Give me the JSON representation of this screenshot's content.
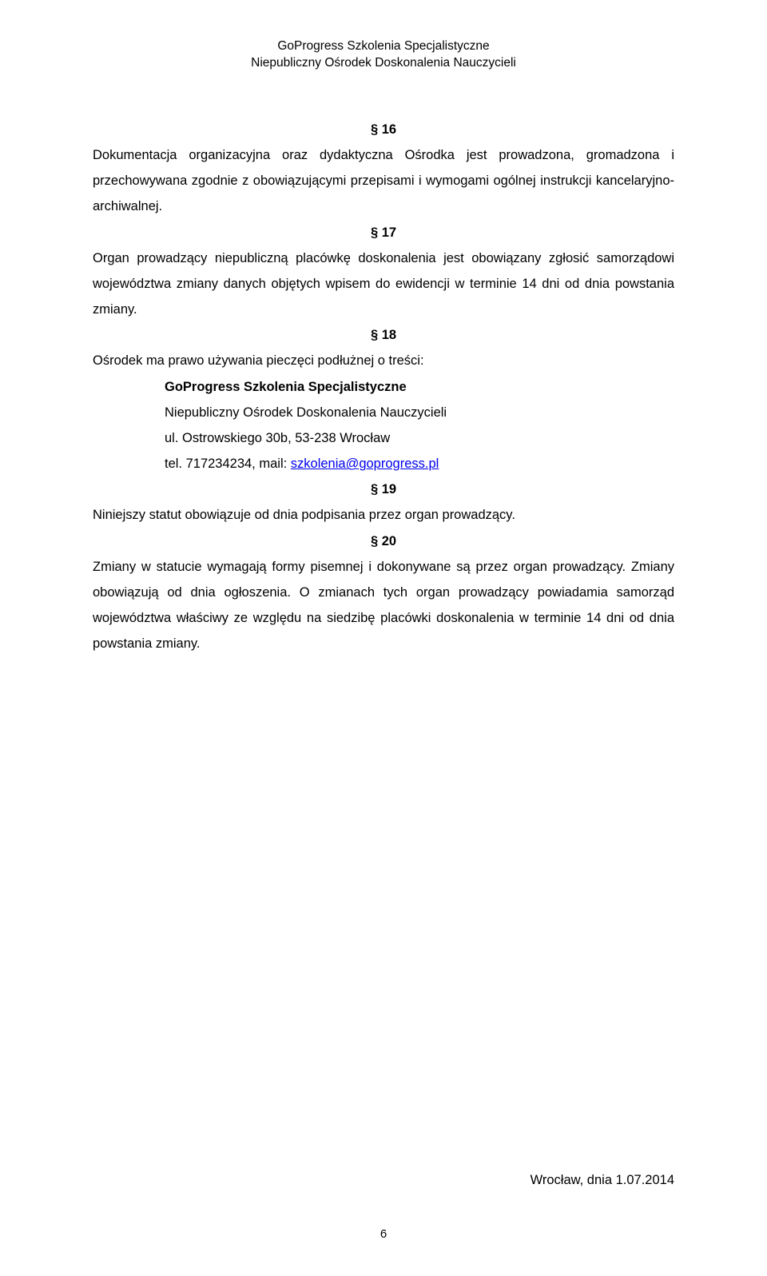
{
  "header": {
    "line1": "GoProgress Szkolenia Specjalistyczne",
    "line2": "Niepubliczny Ośrodek Doskonalenia Nauczycieli"
  },
  "sections": {
    "s16": {
      "num": "§ 16",
      "text": "Dokumentacja organizacyjna oraz dydaktyczna Ośrodka jest prowadzona, gromadzona i przechowywana zgodnie z obowiązującymi przepisami i wymogami ogólnej instrukcji kancelaryjno-archiwalnej."
    },
    "s17": {
      "num": "§ 17",
      "text": "Organ prowadzący niepubliczną placówkę doskonalenia jest obowiązany zgłosić samorządowi województwa zmiany danych objętych wpisem do ewidencji w terminie 14 dni od dnia powstania zmiany."
    },
    "s18": {
      "num": "§ 18",
      "intro": "Ośrodek ma prawo używania pieczęci podłużnej o treści:",
      "line1": "GoProgress Szkolenia Specjalistyczne",
      "line2": "Niepubliczny Ośrodek Doskonalenia Nauczycieli",
      "line3": "ul. Ostrowskiego 30b, 53-238 Wrocław",
      "line4_prefix": "tel. 717234234, mail: ",
      "email": "szkolenia@goprogress.pl"
    },
    "s19": {
      "num": "§ 19",
      "text": "Niniejszy statut obowiązuje od dnia podpisania przez organ prowadzący."
    },
    "s20": {
      "num": "§ 20",
      "text": "Zmiany w statucie wymagają formy pisemnej i dokonywane są przez organ prowadzący. Zmiany obowiązują od dnia ogłoszenia. O zmianach tych organ prowadzący powiadamia samorząd województwa właściwy ze względu na siedzibę placówki doskonalenia w terminie 14 dni od dnia powstania zmiany."
    }
  },
  "footer": {
    "date": "Wrocław, dnia 1.07.2014",
    "page": "6"
  }
}
